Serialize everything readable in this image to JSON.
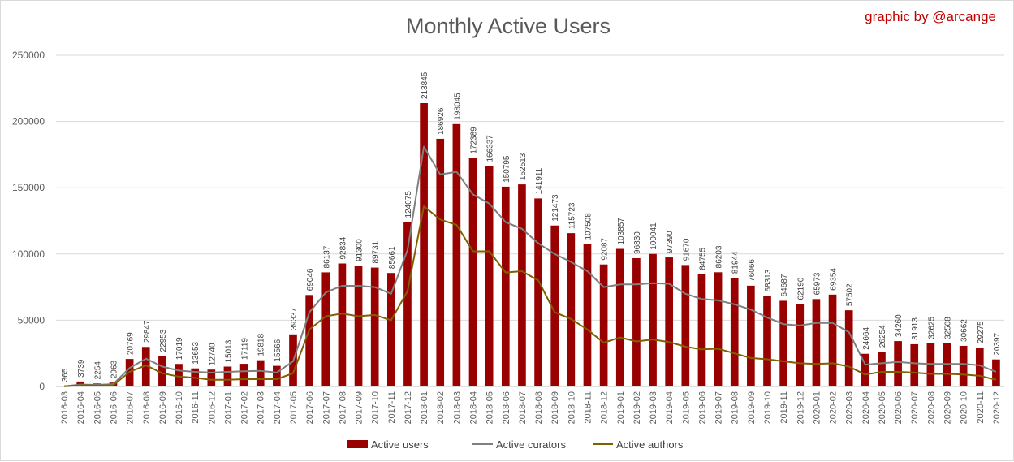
{
  "chart_data": {
    "type": "bar",
    "title": "Monthly Active Users",
    "credit": "graphic by @arcange",
    "ylim": [
      0,
      250000
    ],
    "yticks": [
      0,
      50000,
      100000,
      150000,
      200000,
      250000
    ],
    "grid": true,
    "legend_position": "bottom",
    "categories": [
      "2016-03",
      "2016-04",
      "2016-05",
      "2016-06",
      "2016-07",
      "2016-08",
      "2016-09",
      "2016-10",
      "2016-11",
      "2016-12",
      "2017-01",
      "2017-02",
      "2017-03",
      "2017-04",
      "2017-05",
      "2017-06",
      "2017-07",
      "2017-08",
      "2017-09",
      "2017-10",
      "2017-11",
      "2017-12",
      "2018-01",
      "2018-02",
      "2018-03",
      "2018-04",
      "2018-05",
      "2018-06",
      "2018-07",
      "2018-08",
      "2018-09",
      "2018-10",
      "2018-11",
      "2018-12",
      "2019-01",
      "2019-02",
      "2019-03",
      "2019-04",
      "2019-05",
      "2019-06",
      "2019-07",
      "2019-08",
      "2019-09",
      "2019-10",
      "2019-11",
      "2019-12",
      "2020-01",
      "2020-02",
      "2020-03",
      "2020-04",
      "2020-05",
      "2020-06",
      "2020-07",
      "2020-08",
      "2020-09",
      "2020-10",
      "2020-11",
      "2020-12"
    ],
    "series": [
      {
        "name": "Active users",
        "kind": "bar",
        "color": "#990000",
        "values": [
          365,
          3739,
          2254,
          2963,
          20769,
          29847,
          22953,
          17019,
          13653,
          12740,
          15013,
          17119,
          19818,
          15566,
          39337,
          69046,
          86137,
          92834,
          91300,
          89731,
          85661,
          124075,
          213845,
          186926,
          198045,
          172389,
          166337,
          150795,
          152513,
          141911,
          121473,
          115723,
          107508,
          92087,
          103857,
          96830,
          100041,
          97390,
          91670,
          84755,
          86203,
          81944,
          76066,
          68313,
          64687,
          62190,
          65973,
          69354,
          57502,
          24664,
          26254,
          34260,
          31913,
          32625,
          32508,
          30662,
          29275,
          20397
        ]
      },
      {
        "name": "Active curators",
        "kind": "line",
        "color": "#7f7f7f",
        "values": [
          200,
          1500,
          1200,
          1800,
          14000,
          21000,
          15000,
          12000,
          11000,
          10500,
          11000,
          11500,
          11800,
          10500,
          19000,
          56000,
          71000,
          76000,
          76000,
          75000,
          70000,
          103000,
          181000,
          160000,
          162000,
          145000,
          138000,
          124000,
          119000,
          108000,
          100000,
          94000,
          87000,
          75000,
          77000,
          77000,
          78000,
          77500,
          70000,
          66000,
          65000,
          62000,
          58000,
          52000,
          47000,
          46000,
          48000,
          48000,
          41000,
          16500,
          17500,
          18500,
          17500,
          17000,
          17000,
          17000,
          16000,
          11000
        ]
      },
      {
        "name": "Active authors",
        "kind": "line",
        "color": "#7f6000",
        "values": [
          150,
          1000,
          800,
          1000,
          11000,
          16000,
          10000,
          7500,
          6500,
          5000,
          5000,
          5500,
          5500,
          5500,
          10000,
          43000,
          53000,
          55000,
          53000,
          54000,
          50000,
          72000,
          136000,
          126000,
          122000,
          102000,
          102000,
          86000,
          87000,
          80000,
          56000,
          51000,
          43000,
          33000,
          37000,
          34000,
          35500,
          33500,
          30000,
          28000,
          28500,
          25000,
          21500,
          20500,
          19000,
          17500,
          17000,
          17500,
          15000,
          9000,
          11000,
          11000,
          10500,
          9500,
          9500,
          9000,
          8000,
          5000
        ]
      }
    ]
  }
}
